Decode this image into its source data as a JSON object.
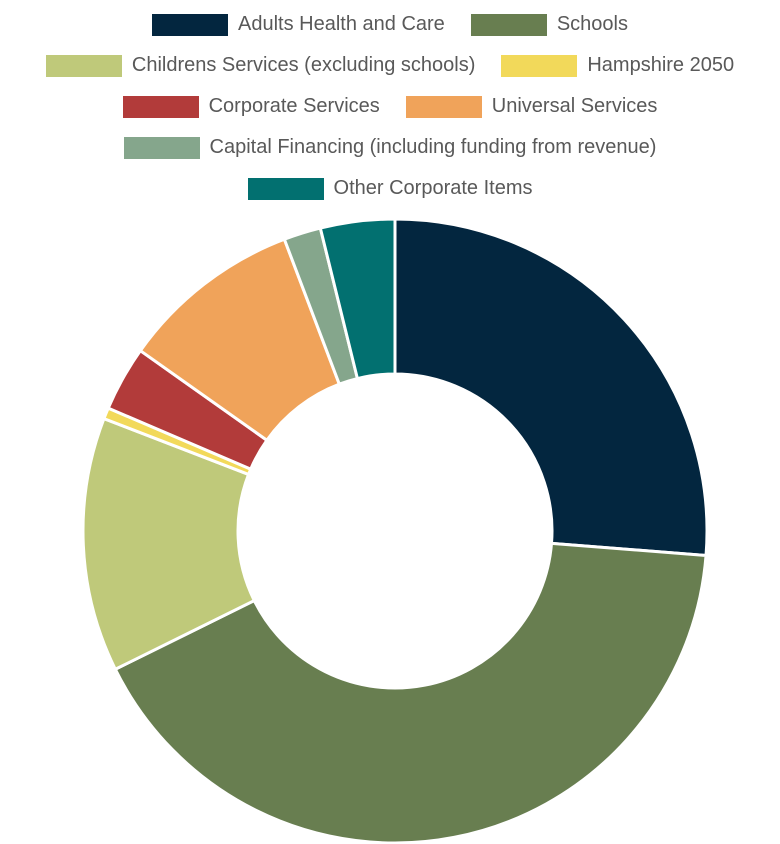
{
  "chart_data": {
    "type": "pie",
    "donut": true,
    "title": "",
    "legend_position": "top",
    "categories": [
      "Adults Health and Care",
      "Schools",
      "Childrens Services (excluding schools)",
      "Hampshire 2050",
      "Corporate Services",
      "Universal Services",
      "Capital Financing (including funding from revenue)",
      "Other Corporate Items"
    ],
    "values": [
      27.3,
      43.1,
      13.7,
      0.6,
      3.5,
      9.8,
      2.0,
      4.0
    ],
    "colors": [
      "#03263f",
      "#687e50",
      "#bfc97a",
      "#f2d95a",
      "#b23b3a",
      "#f0a35a",
      "#85a68c",
      "#027070"
    ]
  },
  "legend_rows": [
    [
      0,
      1
    ],
    [
      2,
      3
    ],
    [
      4,
      5
    ],
    [
      6
    ],
    [
      7
    ]
  ]
}
